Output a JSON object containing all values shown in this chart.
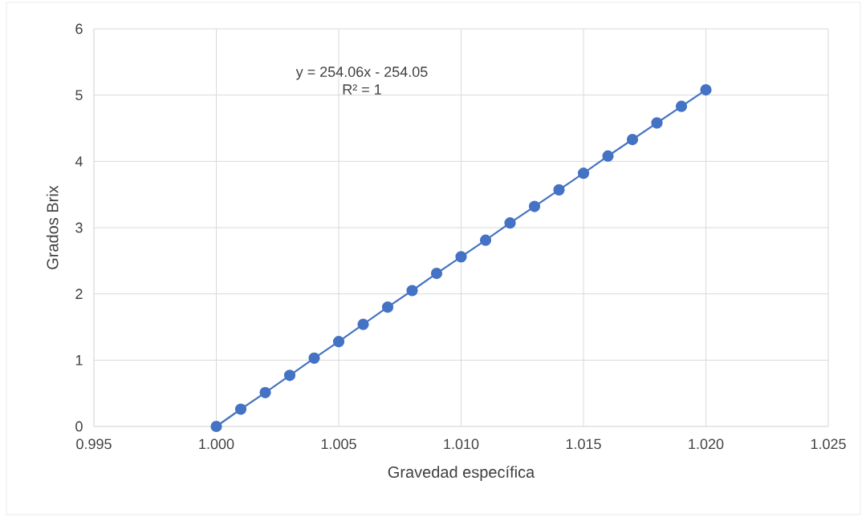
{
  "chart_data": {
    "type": "line",
    "xlabel": "Gravedad específica",
    "ylabel": "Grados Brix",
    "annotations": [
      "y = 254.06x - 254.05",
      "R² = 1"
    ],
    "x": [
      1.0,
      1.001,
      1.002,
      1.003,
      1.004,
      1.005,
      1.006,
      1.007,
      1.008,
      1.009,
      1.01,
      1.011,
      1.012,
      1.013,
      1.014,
      1.015,
      1.016,
      1.017,
      1.018,
      1.019,
      1.02
    ],
    "series": [
      {
        "color": "#4472c4",
        "values": [
          0,
          0.26,
          0.51,
          0.77,
          1.03,
          1.28,
          1.54,
          1.8,
          2.05,
          2.31,
          2.56,
          2.81,
          3.07,
          3.32,
          3.57,
          3.82,
          4.08,
          4.33,
          4.58,
          4.83,
          5.08
        ]
      }
    ],
    "xlim": [
      0.995,
      1.025
    ],
    "xticks": [
      0.995,
      {
        "value": 1.0,
        "label": "1.000"
      },
      1.005,
      {
        "value": 1.01,
        "label": "1.010"
      },
      1.015,
      {
        "value": 1.02,
        "label": "1.020"
      },
      1.025
    ],
    "ylim": [
      0,
      6
    ],
    "yticks": [
      0,
      1,
      2,
      3,
      4,
      5,
      6
    ],
    "grid": true,
    "marker": "circle",
    "line_style": "solid"
  }
}
